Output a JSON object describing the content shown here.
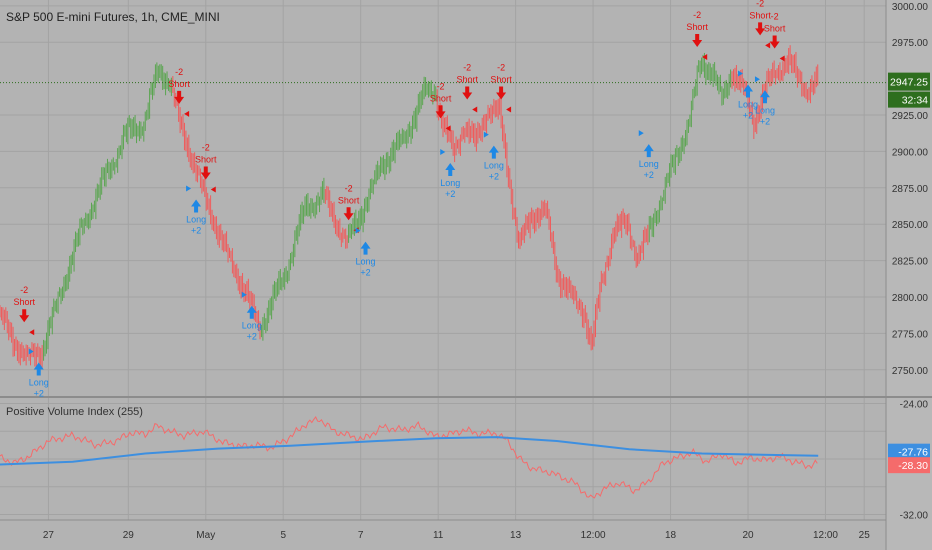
{
  "header": {
    "title": "S&P 500 E-mini Futures, 1h, CME_MINI"
  },
  "indicator": {
    "title": "Positive Volume Index (255)"
  },
  "colors": {
    "background": "#b3b3b3",
    "up": "#5aa550",
    "down": "#f05a5a",
    "pvi": "#f56b6b",
    "pvi_ma": "#3d8fe0",
    "short": "#e01010",
    "long": "#1e88e5",
    "price_tag": "#2e6e1e"
  },
  "chart_data": [
    {
      "type": "line",
      "title": "S&P 500 E-mini Futures, 1h, CME_MINI",
      "ylim": [
        2732,
        3004
      ],
      "y_ticks": [
        {
          "v": 3000,
          "label": "3000.00"
        },
        {
          "v": 2975,
          "label": "2975.00"
        },
        {
          "v": 2925,
          "label": "2925.00"
        },
        {
          "v": 2900,
          "label": "2900.00"
        },
        {
          "v": 2875,
          "label": "2875.00"
        },
        {
          "v": 2850,
          "label": "2850.00"
        },
        {
          "v": 2825,
          "label": "2825.00"
        },
        {
          "v": 2800,
          "label": "2800.00"
        },
        {
          "v": 2775,
          "label": "2775.00"
        },
        {
          "v": 2750,
          "label": "2750.00"
        }
      ],
      "last_price": {
        "value": 2947.25,
        "label": "2947.25",
        "countdown": "32:34"
      },
      "series_up_color": "#5aa550",
      "price_path": [
        {
          "t": 0,
          "p": 2790
        },
        {
          "t": 0.6,
          "p": 2770
        },
        {
          "t": 1.2,
          "p": 2758
        },
        {
          "t": 1.8,
          "p": 2763
        },
        {
          "t": 2.5,
          "p": 2800
        },
        {
          "t": 3.5,
          "p": 2850
        },
        {
          "t": 4.5,
          "p": 2885
        },
        {
          "t": 5.2,
          "p": 2910
        },
        {
          "t": 6.0,
          "p": 2920
        },
        {
          "t": 6.6,
          "p": 2955
        },
        {
          "t": 7.1,
          "p": 2948
        },
        {
          "t": 7.5,
          "p": 2918
        },
        {
          "t": 8.0,
          "p": 2895
        },
        {
          "t": 8.6,
          "p": 2865
        },
        {
          "t": 9.3,
          "p": 2835
        },
        {
          "t": 9.8,
          "p": 2818
        },
        {
          "t": 10.4,
          "p": 2795
        },
        {
          "t": 10.8,
          "p": 2780
        },
        {
          "t": 11.2,
          "p": 2792
        },
        {
          "t": 11.8,
          "p": 2815
        },
        {
          "t": 12.7,
          "p": 2862
        },
        {
          "t": 13.4,
          "p": 2870
        },
        {
          "t": 14.0,
          "p": 2850
        },
        {
          "t": 14.4,
          "p": 2838
        },
        {
          "t": 15.0,
          "p": 2858
        },
        {
          "t": 15.8,
          "p": 2890
        },
        {
          "t": 16.8,
          "p": 2910
        },
        {
          "t": 17.6,
          "p": 2940
        },
        {
          "t": 18.0,
          "p": 2944
        },
        {
          "t": 18.4,
          "p": 2915
        },
        {
          "t": 18.8,
          "p": 2900
        },
        {
          "t": 19.2,
          "p": 2918
        },
        {
          "t": 19.7,
          "p": 2905
        },
        {
          "t": 20.2,
          "p": 2930
        },
        {
          "t": 20.7,
          "p": 2925
        },
        {
          "t": 21.2,
          "p": 2870
        },
        {
          "t": 21.5,
          "p": 2835
        },
        {
          "t": 22.0,
          "p": 2855
        },
        {
          "t": 22.6,
          "p": 2860
        },
        {
          "t": 23.1,
          "p": 2815
        },
        {
          "t": 23.7,
          "p": 2800
        },
        {
          "t": 24.2,
          "p": 2790
        },
        {
          "t": 24.5,
          "p": 2765
        },
        {
          "t": 24.9,
          "p": 2810
        },
        {
          "t": 25.4,
          "p": 2845
        },
        {
          "t": 26.0,
          "p": 2850
        },
        {
          "t": 26.4,
          "p": 2828
        },
        {
          "t": 26.8,
          "p": 2840
        },
        {
          "t": 27.4,
          "p": 2870
        },
        {
          "t": 28.0,
          "p": 2895
        },
        {
          "t": 28.5,
          "p": 2920
        },
        {
          "t": 29.0,
          "p": 2960
        },
        {
          "t": 29.5,
          "p": 2955
        },
        {
          "t": 29.9,
          "p": 2935
        },
        {
          "t": 30.3,
          "p": 2955
        },
        {
          "t": 30.8,
          "p": 2942
        },
        {
          "t": 31.2,
          "p": 2920
        },
        {
          "t": 31.6,
          "p": 2940
        },
        {
          "t": 32.1,
          "p": 2955
        },
        {
          "t": 32.6,
          "p": 2963
        },
        {
          "t": 33.0,
          "p": 2950
        },
        {
          "t": 33.4,
          "p": 2944
        },
        {
          "t": 33.8,
          "p": 2947
        }
      ],
      "green_ranges": [
        [
          1.8,
          7.1
        ],
        [
          10.8,
          13.4
        ],
        [
          14.4,
          18.0
        ],
        [
          26.8,
          30.2
        ]
      ],
      "signals": [
        {
          "type": "short",
          "t": 1.0,
          "p": 2782,
          "labels": [
            "-2",
            "Short"
          ]
        },
        {
          "type": "long",
          "t": 1.6,
          "p": 2755,
          "labels": [
            "Long",
            "+2"
          ]
        },
        {
          "type": "short",
          "t": 7.4,
          "p": 2932,
          "labels": [
            "-2",
            "Short"
          ]
        },
        {
          "type": "short",
          "t": 8.5,
          "p": 2880,
          "labels": [
            "-2",
            "Short"
          ]
        },
        {
          "type": "long",
          "t": 8.1,
          "p": 2867,
          "labels": [
            "Long",
            "+2"
          ]
        },
        {
          "type": "long",
          "t": 10.4,
          "p": 2794,
          "labels": [
            "Long",
            "+2"
          ]
        },
        {
          "type": "short",
          "t": 14.4,
          "p": 2852,
          "labels": [
            "-2",
            "Short"
          ]
        },
        {
          "type": "long",
          "t": 15.1,
          "p": 2838,
          "labels": [
            "Long",
            "+2"
          ]
        },
        {
          "type": "short",
          "t": 18.2,
          "p": 2922,
          "labels": [
            "-2",
            "Short"
          ]
        },
        {
          "type": "long",
          "t": 18.6,
          "p": 2892,
          "labels": [
            "Long",
            "+2"
          ]
        },
        {
          "type": "short",
          "t": 19.3,
          "p": 2935,
          "labels": [
            "-2",
            "Short"
          ]
        },
        {
          "type": "long",
          "t": 20.4,
          "p": 2904,
          "labels": [
            "Long",
            "+2"
          ]
        },
        {
          "type": "short",
          "t": 20.7,
          "p": 2935,
          "labels": [
            "-2",
            "Short"
          ]
        },
        {
          "type": "long",
          "t": 26.8,
          "p": 2905,
          "labels": [
            "Long",
            "+2"
          ]
        },
        {
          "type": "short",
          "t": 28.8,
          "p": 2971,
          "labels": [
            "-2",
            "Short"
          ]
        },
        {
          "type": "short",
          "t": 31.4,
          "p": 2979,
          "labels": [
            "-2",
            "Short"
          ]
        },
        {
          "type": "long",
          "t": 30.9,
          "p": 2946,
          "labels": [
            "Long",
            "+2"
          ]
        },
        {
          "type": "short",
          "t": 32.0,
          "p": 2970,
          "labels": [
            "-2",
            "Short"
          ]
        },
        {
          "type": "long",
          "t": 31.6,
          "p": 2942,
          "labels": [
            "Long",
            "+2"
          ]
        }
      ],
      "x_ticks": [
        {
          "t": 2.0,
          "label": "27"
        },
        {
          "t": 5.3,
          "label": "29"
        },
        {
          "t": 8.5,
          "label": "May"
        },
        {
          "t": 11.7,
          "label": "5"
        },
        {
          "t": 14.9,
          "label": "7"
        },
        {
          "t": 18.1,
          "label": "11"
        },
        {
          "t": 21.3,
          "label": "13"
        },
        {
          "t": 24.5,
          "label": "12:00"
        },
        {
          "t": 27.7,
          "label": "18"
        },
        {
          "t": 30.9,
          "label": "20"
        },
        {
          "t": 34.1,
          "label": "12:00"
        },
        {
          "t": 35.7,
          "label": "25"
        }
      ],
      "x_range": [
        0,
        36.6
      ]
    },
    {
      "type": "line",
      "title": "Positive Volume Index (255)",
      "ylim": [
        -32.4,
        -23.6
      ],
      "y_ticks": [
        {
          "v": -24.0,
          "label": "-24.00"
        },
        {
          "v": -32.0,
          "label": "-32.00"
        }
      ],
      "last_values": [
        {
          "name": "ma",
          "value": -27.76,
          "label": "-27.76"
        },
        {
          "name": "pvi",
          "value": -28.3,
          "label": "-28.30"
        }
      ],
      "pvi": [
        {
          "t": 0,
          "v": -27.9
        },
        {
          "t": 0.6,
          "v": -28.3
        },
        {
          "t": 1.2,
          "v": -27.8
        },
        {
          "t": 2.0,
          "v": -26.7
        },
        {
          "t": 3.0,
          "v": -26.3
        },
        {
          "t": 4.0,
          "v": -27.0
        },
        {
          "t": 4.8,
          "v": -26.7
        },
        {
          "t": 5.4,
          "v": -26.1
        },
        {
          "t": 6.0,
          "v": -26.2
        },
        {
          "t": 6.5,
          "v": -25.6
        },
        {
          "t": 7.0,
          "v": -26.0
        },
        {
          "t": 7.6,
          "v": -26.3
        },
        {
          "t": 8.4,
          "v": -26.0
        },
        {
          "t": 9.2,
          "v": -26.8
        },
        {
          "t": 10.0,
          "v": -27.1
        },
        {
          "t": 10.6,
          "v": -27.0
        },
        {
          "t": 11.2,
          "v": -27.2
        },
        {
          "t": 12.0,
          "v": -26.4
        },
        {
          "t": 12.6,
          "v": -25.5
        },
        {
          "t": 13.2,
          "v": -25.1
        },
        {
          "t": 13.8,
          "v": -26.0
        },
        {
          "t": 14.4,
          "v": -26.3
        },
        {
          "t": 15.0,
          "v": -26.6
        },
        {
          "t": 15.8,
          "v": -25.7
        },
        {
          "t": 16.6,
          "v": -25.9
        },
        {
          "t": 17.3,
          "v": -25.6
        },
        {
          "t": 18.0,
          "v": -26.4
        },
        {
          "t": 18.6,
          "v": -26.2
        },
        {
          "t": 19.2,
          "v": -25.9
        },
        {
          "t": 19.8,
          "v": -26.2
        },
        {
          "t": 20.4,
          "v": -26.1
        },
        {
          "t": 21.0,
          "v": -26.7
        },
        {
          "t": 21.4,
          "v": -27.9
        },
        {
          "t": 22.0,
          "v": -28.7
        },
        {
          "t": 22.6,
          "v": -28.9
        },
        {
          "t": 23.2,
          "v": -29.3
        },
        {
          "t": 23.8,
          "v": -29.8
        },
        {
          "t": 24.4,
          "v": -30.9
        },
        {
          "t": 25.0,
          "v": -30.1
        },
        {
          "t": 25.6,
          "v": -29.7
        },
        {
          "t": 26.2,
          "v": -30.3
        },
        {
          "t": 26.8,
          "v": -29.6
        },
        {
          "t": 27.4,
          "v": -28.3
        },
        {
          "t": 28.0,
          "v": -27.9
        },
        {
          "t": 28.6,
          "v": -27.5
        },
        {
          "t": 29.2,
          "v": -28.2
        },
        {
          "t": 29.8,
          "v": -27.6
        },
        {
          "t": 30.4,
          "v": -28.3
        },
        {
          "t": 31.0,
          "v": -27.9
        },
        {
          "t": 31.6,
          "v": -28.1
        },
        {
          "t": 32.2,
          "v": -27.8
        },
        {
          "t": 32.8,
          "v": -28.2
        },
        {
          "t": 33.4,
          "v": -28.5
        },
        {
          "t": 33.8,
          "v": -28.3
        }
      ],
      "ma": [
        {
          "t": 0,
          "v": -28.4
        },
        {
          "t": 3,
          "v": -28.2
        },
        {
          "t": 6,
          "v": -27.6
        },
        {
          "t": 9,
          "v": -27.25
        },
        {
          "t": 12,
          "v": -27.05
        },
        {
          "t": 15,
          "v": -26.75
        },
        {
          "t": 18,
          "v": -26.5
        },
        {
          "t": 20.5,
          "v": -26.42
        },
        {
          "t": 23,
          "v": -26.7
        },
        {
          "t": 26,
          "v": -27.3
        },
        {
          "t": 29,
          "v": -27.6
        },
        {
          "t": 31.5,
          "v": -27.7
        },
        {
          "t": 33.8,
          "v": -27.76
        }
      ]
    }
  ]
}
